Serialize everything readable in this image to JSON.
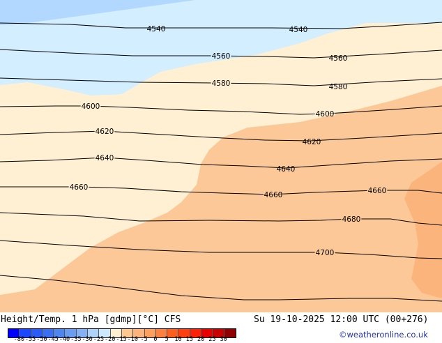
{
  "title": "Height/Temp. 1 hPa [gdmp][°C] CFS",
  "datetime": "Su 19-10-2025 12:00 UTC (00+276)",
  "credit": "©weatheronline.co.uk",
  "legend": {
    "labels": [
      "-80",
      "-55",
      "-50",
      "-45",
      "-40",
      "-35",
      "-30",
      "-25",
      "-20",
      "-15",
      "-10",
      "-5",
      "0",
      "5",
      "10",
      "15",
      "20",
      "25",
      "30"
    ],
    "colors": [
      "#0000ff",
      "#1a46ff",
      "#2a5cf5",
      "#3a70f0",
      "#4e86f0",
      "#6a9cf2",
      "#86b2f4",
      "#aed2f8",
      "#cce8ff",
      "#fff0d2",
      "#fdc890",
      "#fcb47c",
      "#fca060",
      "#fc8040",
      "#fc6020",
      "#fc4010",
      "#fc2008",
      "#e80000",
      "#c80000",
      "#900000"
    ]
  },
  "colors": {
    "blue_dark": "#b2d8ff",
    "blue_light": "#d2eeff",
    "cream": "#fff0d4",
    "orange": "#fdc898",
    "orange_dark": "#fbb47c"
  },
  "contours": [
    {
      "label": "4540",
      "labels_text": [
        "4540",
        "4540"
      ]
    },
    {
      "label": "4560",
      "labels_text": [
        "4560",
        "4560"
      ]
    },
    {
      "label": "4580",
      "labels_text": [
        "4580",
        "4580"
      ]
    },
    {
      "label": "4600",
      "labels_text": [
        "4600",
        "4600"
      ]
    },
    {
      "label": "4620",
      "labels_text": [
        "4620",
        "4620"
      ]
    },
    {
      "label": "4640",
      "labels_text": [
        "4640",
        "4640"
      ]
    },
    {
      "label": "4660",
      "labels_text": [
        "4660",
        "4660",
        "4660"
      ]
    },
    {
      "label": "4680",
      "labels_text": [
        "4680"
      ]
    },
    {
      "label": "4700",
      "labels_text": [
        "4700"
      ]
    }
  ]
}
